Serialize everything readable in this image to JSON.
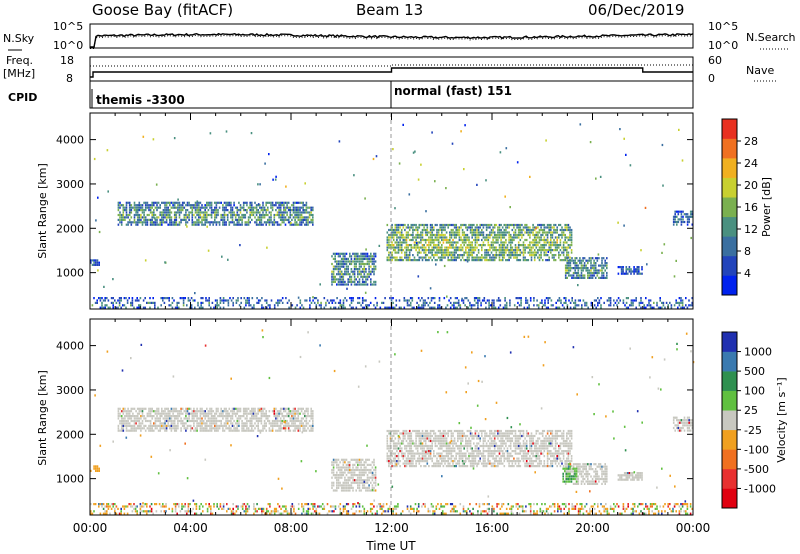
{
  "header": {
    "station": "Goose Bay (fitACF)",
    "beam": "Beam 13",
    "date": "06/Dec/2019"
  },
  "chart_data": [
    {
      "type": "line",
      "panel": "noise",
      "left_label": "N.Sky",
      "right_label": "N.Search",
      "left_ticks": [
        "10^5",
        "10^0"
      ],
      "right_ticks": [
        "10^5",
        "10^0"
      ]
    },
    {
      "type": "line",
      "panel": "freq-nave",
      "left_label_top": "Freq.",
      "left_label_unit": "[MHz]",
      "right_label": "Nave",
      "left_ticks": [
        "18",
        "8"
      ],
      "right_ticks": [
        "60",
        "0"
      ]
    },
    {
      "type": "table",
      "panel": "cpid",
      "label": "CPID",
      "segments": [
        {
          "start_hour": 0,
          "end_hour": 12,
          "name": "themis -3300"
        },
        {
          "start_hour": 12,
          "end_hour": 24,
          "name": "normal (fast) 151"
        }
      ]
    },
    {
      "type": "heatmap",
      "panel": "power",
      "ylabel": "Slant Range [km]",
      "yticks": [
        "4000",
        "3000",
        "2000",
        "1000"
      ],
      "ylim": [
        180,
        4600
      ],
      "colorbar_label": "Power [dB]",
      "colorbar_ticks": [
        "28",
        "24",
        "20",
        "16",
        "12",
        "8",
        "4"
      ],
      "colorbar_range": [
        0,
        32
      ],
      "colors": [
        "#0022ee",
        "#2244bb",
        "#3a6fa0",
        "#4a9080",
        "#7ab050",
        "#c8d030",
        "#f0b020",
        "#f07020",
        "#e83020"
      ],
      "regions": [
        {
          "t0": 1.1,
          "t1": 8.9,
          "r0": 2050,
          "r1": 2600,
          "level": 12
        },
        {
          "t0": 9.6,
          "t1": 11.4,
          "r0": 700,
          "r1": 1450,
          "level": 12
        },
        {
          "t0": 11.8,
          "t1": 19.2,
          "r0": 1250,
          "r1": 2100,
          "level": 16
        },
        {
          "t0": 18.9,
          "t1": 20.6,
          "r0": 850,
          "r1": 1350,
          "level": 12
        },
        {
          "t0": 21.0,
          "t1": 22.0,
          "r0": 950,
          "r1": 1150,
          "level": 6
        },
        {
          "t0": 23.2,
          "t1": 24.0,
          "r0": 2050,
          "r1": 2400,
          "level": 8
        },
        {
          "t0": 0.0,
          "t1": 0.4,
          "r0": 1150,
          "r1": 1300,
          "level": 8
        },
        {
          "t0": 0.0,
          "t1": 24.0,
          "r0": 180,
          "r1": 450,
          "level": 8
        }
      ]
    },
    {
      "type": "heatmap",
      "panel": "velocity",
      "ylabel": "Slant Range [km]",
      "yticks": [
        "4000",
        "3000",
        "2000",
        "1000"
      ],
      "ylim": [
        180,
        4600
      ],
      "xlabel": "Time UT",
      "xticks": [
        "00:00",
        "04:00",
        "08:00",
        "12:00",
        "16:00",
        "20:00",
        "00:00"
      ],
      "xlim": [
        0,
        24
      ],
      "colorbar_label": "Velocity [m s⁻¹]",
      "colorbar_ticks": [
        "1000",
        "500",
        "100",
        "25",
        "-25",
        "-100",
        "-500",
        "-1000"
      ],
      "colors": [
        "#2030b0",
        "#3a7ab0",
        "#2f9050",
        "#60c040",
        "#c8c8c0",
        "#f0a020",
        "#f07020",
        "#e83030",
        "#e00010"
      ],
      "regions": [
        {
          "t0": 1.1,
          "t1": 8.9,
          "r0": 2050,
          "r1": 2600,
          "class": "ground"
        },
        {
          "t0": 9.6,
          "t1": 11.4,
          "r0": 700,
          "r1": 1450,
          "class": "ground"
        },
        {
          "t0": 11.8,
          "t1": 19.2,
          "r0": 1250,
          "r1": 2100,
          "class": "ground"
        },
        {
          "t0": 18.9,
          "t1": 20.6,
          "r0": 850,
          "r1": 1350,
          "class": "ground"
        },
        {
          "t0": 21.0,
          "t1": 22.0,
          "r0": 950,
          "r1": 1150,
          "class": "ground"
        },
        {
          "t0": 23.2,
          "t1": 24.0,
          "r0": 2050,
          "r1": 2400,
          "class": "ground"
        },
        {
          "t0": 18.8,
          "t1": 19.4,
          "r0": 900,
          "r1": 1250,
          "class": "positive"
        },
        {
          "t0": 0.0,
          "t1": 0.4,
          "r0": 1150,
          "r1": 1300,
          "class": "negative"
        },
        {
          "t0": 0.0,
          "t1": 24.0,
          "r0": 180,
          "r1": 450,
          "class": "mixed"
        }
      ]
    }
  ]
}
